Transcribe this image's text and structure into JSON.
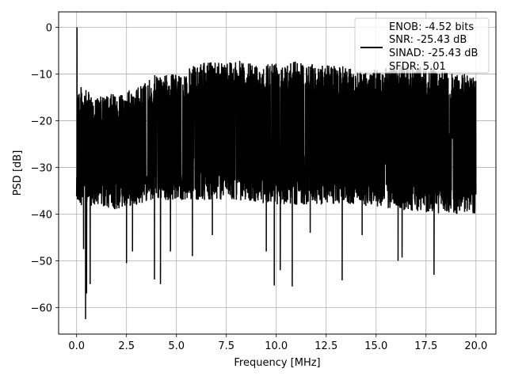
{
  "chart_data": {
    "type": "line",
    "xlabel": "Frequency [MHz]",
    "ylabel": "PSD [dB]",
    "xlim": [
      -0.9,
      21.0
    ],
    "ylim": [
      -65.7,
      3.3
    ],
    "xticks": [
      0.0,
      2.5,
      5.0,
      7.5,
      10.0,
      12.5,
      15.0,
      17.5,
      20.0
    ],
    "xtick_labels": [
      "0.0",
      "2.5",
      "5.0",
      "7.5",
      "10.0",
      "12.5",
      "15.0",
      "17.5",
      "20.0"
    ],
    "yticks": [
      0,
      -10,
      -20,
      -30,
      -40,
      -50,
      -60
    ],
    "ytick_labels": [
      "0",
      "−10",
      "−20",
      "−30",
      "−40",
      "−50",
      "−60"
    ],
    "grid": true,
    "legend_position": "upper-right",
    "series": [
      {
        "color": "#000000",
        "legend_lines": [
          "ENOB: -4.52 bits",
          "SNR: -25.43 dB",
          "SINAD: -25.43 dB",
          "SFDR: 5.01"
        ],
        "x_start": 0.0,
        "x_end": 20.0,
        "peak": {
          "x": 0.02,
          "y": 0.0
        },
        "upper_envelope": [
          [
            0.0,
            -12
          ],
          [
            1.0,
            -15
          ],
          [
            2.0,
            -14
          ],
          [
            3.0,
            -13
          ],
          [
            4.0,
            -10
          ],
          [
            5.0,
            -10
          ],
          [
            6.0,
            -8
          ],
          [
            7.0,
            -7
          ],
          [
            8.0,
            -7
          ],
          [
            9.0,
            -8
          ],
          [
            10.0,
            -7
          ],
          [
            11.0,
            -7
          ],
          [
            12.0,
            -8
          ],
          [
            13.0,
            -8
          ],
          [
            14.0,
            -9
          ],
          [
            15.0,
            -9
          ],
          [
            16.0,
            -8
          ],
          [
            17.0,
            -8
          ],
          [
            18.0,
            -9
          ],
          [
            19.0,
            -10
          ],
          [
            20.0,
            -10
          ]
        ],
        "lower_envelope": [
          [
            0.0,
            -38
          ],
          [
            2.0,
            -39
          ],
          [
            4.0,
            -37
          ],
          [
            6.0,
            -37
          ],
          [
            8.0,
            -37
          ],
          [
            10.0,
            -38
          ],
          [
            12.0,
            -38
          ],
          [
            14.0,
            -38
          ],
          [
            16.0,
            -39
          ],
          [
            18.0,
            -40
          ],
          [
            20.0,
            -40
          ]
        ],
        "notable_minima": [
          [
            0.35,
            -47.5
          ],
          [
            0.45,
            -62.5
          ],
          [
            0.5,
            -57
          ],
          [
            0.68,
            -55
          ],
          [
            2.5,
            -50.5
          ],
          [
            2.8,
            -48
          ],
          [
            3.9,
            -54
          ],
          [
            4.2,
            -55
          ],
          [
            4.7,
            -48
          ],
          [
            5.8,
            -49
          ],
          [
            6.8,
            -44.5
          ],
          [
            9.5,
            -48
          ],
          [
            9.9,
            -55.3
          ],
          [
            10.2,
            -52
          ],
          [
            10.8,
            -55.5
          ],
          [
            11.7,
            -44
          ],
          [
            13.3,
            -54.2
          ],
          [
            14.3,
            -44.5
          ],
          [
            16.1,
            -50
          ],
          [
            16.3,
            -49.3
          ],
          [
            17.9,
            -53
          ]
        ]
      }
    ]
  }
}
